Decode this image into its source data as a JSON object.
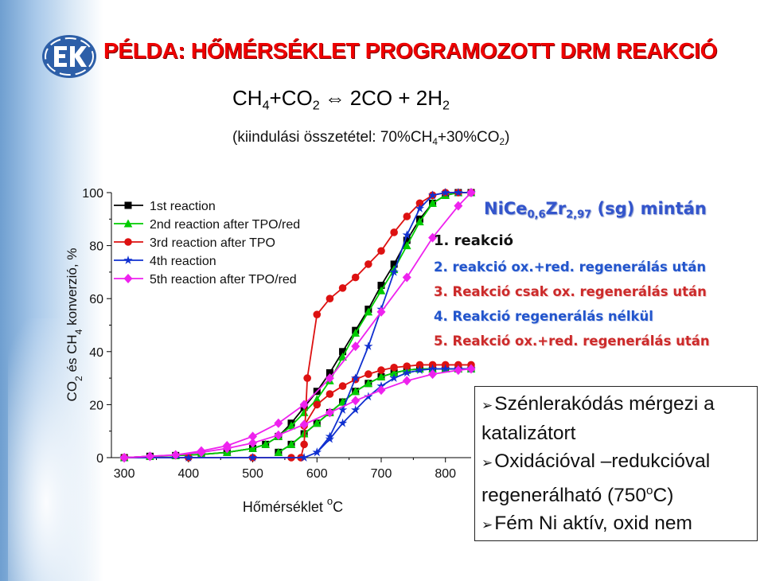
{
  "title": "PÉLDA: HŐMÉRSÉKLET PROGRAMOZOTT DRM REAKCIÓ",
  "equation": {
    "lhs_1": "CH",
    "lhs_1_sub": "4",
    "lhs_plus": "+CO",
    "lhs_2_sub": "2",
    "arrow": "⇔",
    "rhs": "2CO + 2H",
    "rhs_sub": "2"
  },
  "feed": {
    "prefix": "(kiindulási összetétel: 70%CH",
    "sub1": "4",
    "mid": "+30%CO",
    "sub2": "2",
    "suffix": ")"
  },
  "notes": {
    "title_main": "NiCe",
    "title_sub1": "0,6",
    "title_mid": "Zr",
    "title_sub2": "2,97",
    "title_tail": " (sg) mintán",
    "items": [
      "1. reakció",
      "2. reakció ox.+red. regenerálás után",
      "3. Reakció csak ox. regenerálás után",
      "4. Reakció regenerálás nélkül",
      "5. Reakció ox.+red. regenerálás után"
    ]
  },
  "findings": [
    "Szénlerakódás mérgezi a katalizátort",
    "Oxidációval –redukcióval regenerálható (750",
    "Fém Ni aktív, oxid nem"
  ],
  "findings_sup": "o",
  "findings_tail": "C)",
  "colors": {
    "title": "#ee0000",
    "series_1": "#000000",
    "series_2": "#00cc00",
    "series_3": "#dd1111",
    "series_4": "#1030d0",
    "series_5": "#ee22ee",
    "notes_blue": "#2255cc",
    "notes_red": "#cc2a2a"
  },
  "chart_data": {
    "type": "line",
    "xlabel_main": "Hőmérséklet ",
    "xlabel_sup": "o",
    "xlabel_tail": "C",
    "ylabel_parts": [
      "CO",
      "2",
      " és CH",
      "4",
      " konverzió, %"
    ],
    "xlim": [
      280,
      840
    ],
    "ylim": [
      0,
      100
    ],
    "xticks": [
      300,
      400,
      500,
      600,
      700,
      800
    ],
    "yticks": [
      0,
      20,
      40,
      60,
      80,
      100
    ],
    "grid": false,
    "legend_position": "top-left",
    "series": [
      {
        "name": "1st reaction",
        "color": "#000000",
        "marker": "square",
        "curve": "upper",
        "x": [
          300,
          340,
          380,
          420,
          460,
          500,
          520,
          540,
          560,
          580,
          600,
          620,
          640,
          660,
          680,
          700,
          720,
          740,
          760,
          780,
          800,
          820,
          840
        ],
        "y": [
          0,
          0.5,
          0.8,
          1.2,
          2,
          3.5,
          5,
          8,
          13,
          19,
          25,
          32,
          40,
          48,
          56,
          65,
          73,
          82,
          90,
          96,
          99,
          100,
          100
        ]
      },
      {
        "name": "1st reaction",
        "color": "#000000",
        "marker": "square",
        "curve": "lower",
        "x": [
          540,
          560,
          580,
          600,
          620,
          640,
          660,
          680,
          700,
          720,
          740,
          760,
          780,
          800,
          820,
          840
        ],
        "y": [
          2,
          5,
          9,
          13,
          17,
          21,
          25,
          28,
          30.5,
          32,
          33,
          33.5,
          33.5,
          33.5,
          33.5,
          33.5
        ]
      },
      {
        "name": "2nd reaction after TPO/red",
        "color": "#00cc00",
        "marker": "triangle",
        "curve": "upper",
        "x": [
          300,
          340,
          380,
          420,
          460,
          500,
          520,
          540,
          560,
          580,
          600,
          620,
          640,
          660,
          680,
          700,
          720,
          740,
          760,
          780,
          800,
          820,
          840
        ],
        "y": [
          0,
          0.5,
          0.8,
          1.2,
          2,
          3.5,
          5,
          8,
          12,
          17,
          22,
          29,
          38,
          47,
          55,
          63,
          71,
          80,
          89,
          96,
          99,
          100,
          100
        ]
      },
      {
        "name": "2nd reaction after TPO/red",
        "color": "#00cc00",
        "marker": "triangle",
        "curve": "lower",
        "x": [
          540,
          560,
          580,
          600,
          620,
          640,
          660,
          680,
          700,
          720,
          740,
          760,
          780,
          800,
          820,
          840
        ],
        "y": [
          2,
          5,
          9,
          13,
          17,
          21,
          25,
          28,
          30.5,
          32,
          33,
          33.5,
          33.5,
          33.5,
          33.5,
          33.5
        ]
      },
      {
        "name": "3rd reaction after TPO",
        "color": "#dd1111",
        "marker": "circle",
        "curve": "upper",
        "x": [
          300,
          400,
          500,
          560,
          575,
          580,
          585,
          600,
          620,
          640,
          660,
          680,
          700,
          720,
          740,
          760,
          780,
          800,
          820,
          840
        ],
        "y": [
          0,
          0,
          0,
          0,
          0,
          5,
          30,
          54,
          60,
          64,
          68,
          73,
          78,
          85,
          91,
          96,
          99,
          100,
          100,
          100
        ]
      },
      {
        "name": "3rd reaction after TPO",
        "color": "#dd1111",
        "marker": "circle",
        "curve": "lower",
        "x": [
          580,
          600,
          620,
          640,
          660,
          680,
          700,
          720,
          740,
          760,
          780,
          800,
          820,
          840
        ],
        "y": [
          12,
          20,
          24,
          27,
          29.5,
          31.5,
          33,
          34,
          34.5,
          35,
          35,
          35,
          35,
          35
        ]
      },
      {
        "name": "4th reaction",
        "color": "#1030d0",
        "marker": "star",
        "curve": "upper",
        "x": [
          300,
          400,
          500,
          580,
          600,
          620,
          640,
          660,
          680,
          700,
          720,
          740,
          760,
          780,
          800,
          820,
          840
        ],
        "y": [
          0,
          0,
          0,
          0,
          2,
          8,
          18,
          30,
          42,
          56,
          70,
          84,
          94,
          99,
          100,
          100,
          100
        ]
      },
      {
        "name": "4th reaction",
        "color": "#1030d0",
        "marker": "star",
        "curve": "lower",
        "x": [
          600,
          620,
          640,
          660,
          680,
          700,
          720,
          740,
          760,
          780,
          800,
          820,
          840
        ],
        "y": [
          2,
          7,
          13,
          18,
          23,
          27,
          30,
          32,
          33,
          33.5,
          33.5,
          33.5,
          33.5
        ]
      },
      {
        "name": "5th reaction after TPO/red",
        "color": "#ee22ee",
        "marker": "diamond",
        "curve": "upper",
        "x": [
          300,
          340,
          380,
          420,
          460,
          500,
          540,
          580,
          620,
          660,
          700,
          740,
          780,
          820,
          840
        ],
        "y": [
          0,
          0.5,
          1,
          2.5,
          4.5,
          8,
          13,
          20,
          30,
          42,
          55,
          68,
          83,
          95,
          100
        ]
      },
      {
        "name": "5th reaction after TPO/red",
        "color": "#ee22ee",
        "marker": "diamond",
        "curve": "lower",
        "x": [
          300,
          340,
          380,
          420,
          460,
          500,
          540,
          580,
          620,
          660,
          700,
          740,
          780,
          820,
          840
        ],
        "y": [
          0,
          0.5,
          1,
          2,
          3.5,
          5.5,
          8.5,
          12.5,
          17,
          21.5,
          25.5,
          29,
          31.5,
          33,
          33.5
        ]
      }
    ],
    "legend": [
      {
        "label": "1st reaction",
        "color": "#000000",
        "marker": "square"
      },
      {
        "label": "2nd reaction after TPO/red",
        "color": "#00cc00",
        "marker": "triangle"
      },
      {
        "label": "3rd reaction after TPO",
        "color": "#dd1111",
        "marker": "circle"
      },
      {
        "label": "4th reaction",
        "color": "#1030d0",
        "marker": "star"
      },
      {
        "label": "5th reaction after TPO/red",
        "color": "#ee22ee",
        "marker": "diamond"
      }
    ]
  }
}
